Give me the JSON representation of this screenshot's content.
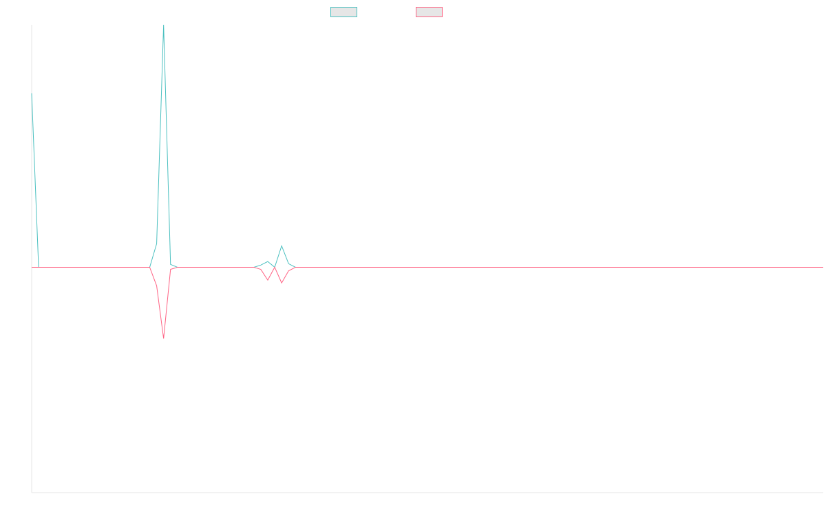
{
  "colors": {
    "series_a": "#4bc0c0",
    "series_b": "#ff6384",
    "axis": "#e6e6e6",
    "legend_fill": "#e6e6e6"
  },
  "legend": {
    "items": [
      {
        "label": "",
        "color": "#4bc0c0"
      },
      {
        "label": "",
        "color": "#ff6384"
      }
    ]
  },
  "chart_data": {
    "type": "line",
    "title": "",
    "xlabel": "",
    "ylabel": "",
    "ylim": [
      -316,
      340
    ],
    "xlim": [
      0,
      114
    ],
    "grid": false,
    "legend_position": "top-center",
    "series": [
      {
        "values": [
          244,
          0,
          0,
          0,
          0,
          0,
          0,
          0,
          0,
          0,
          0,
          0,
          0,
          0,
          0,
          0,
          0,
          0,
          33,
          340,
          4,
          0,
          0,
          0,
          0,
          0,
          0,
          0,
          0,
          0,
          0,
          0,
          0,
          3,
          8,
          0,
          30,
          5,
          0,
          0,
          0,
          0,
          0,
          0,
          0,
          0,
          0,
          0,
          0,
          0,
          0,
          0,
          0,
          0,
          0,
          0,
          0,
          0,
          0,
          0,
          0,
          0,
          0,
          0,
          0,
          0,
          0,
          0,
          0,
          0,
          0,
          0,
          0,
          0,
          0,
          0,
          0,
          0,
          0,
          0,
          0,
          0,
          0,
          0,
          0,
          0,
          0,
          0,
          0,
          0,
          0,
          0,
          0,
          0,
          0,
          0,
          0,
          0,
          0,
          0,
          0,
          0,
          0,
          0,
          0,
          0,
          0,
          0,
          0,
          0,
          0,
          0,
          0,
          0,
          0
        ]
      },
      {
        "values": [
          0,
          0,
          0,
          0,
          0,
          0,
          0,
          0,
          0,
          0,
          0,
          0,
          0,
          0,
          0,
          0,
          0,
          0,
          -26,
          -100,
          -3,
          0,
          0,
          0,
          0,
          0,
          0,
          0,
          0,
          0,
          0,
          0,
          0,
          -3,
          -18,
          0,
          -22,
          -5,
          0,
          0,
          0,
          0,
          0,
          0,
          0,
          0,
          0,
          0,
          0,
          0,
          0,
          0,
          0,
          0,
          0,
          0,
          0,
          0,
          0,
          0,
          0,
          0,
          0,
          0,
          0,
          0,
          0,
          0,
          0,
          0,
          0,
          0,
          0,
          0,
          0,
          0,
          0,
          0,
          0,
          0,
          0,
          0,
          0,
          0,
          0,
          0,
          0,
          0,
          0,
          0,
          0,
          0,
          0,
          0,
          0,
          0,
          0,
          0,
          0,
          0,
          0,
          0,
          0,
          0,
          0,
          0,
          0,
          0,
          0,
          0,
          0,
          0,
          0,
          0,
          0
        ]
      }
    ]
  }
}
